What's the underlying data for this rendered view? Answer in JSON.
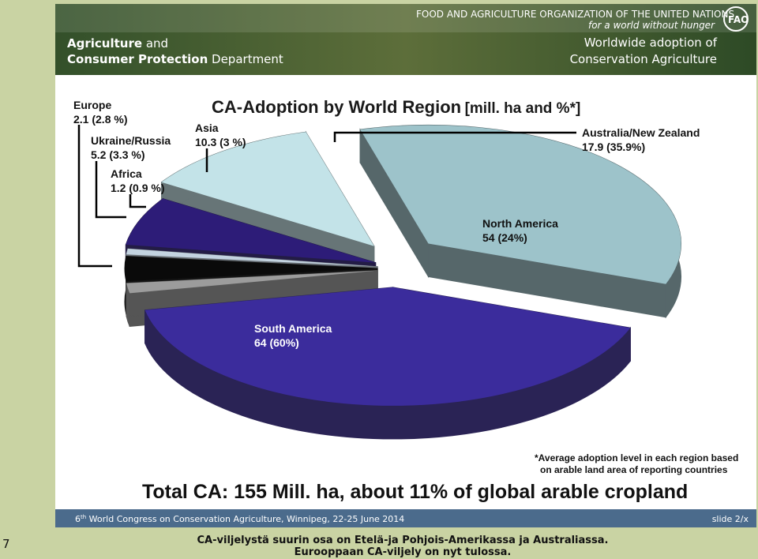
{
  "header": {
    "organization": "FOOD AND AGRICULTURE ORGANIZATION OF THE UNITED NATIONS",
    "tagline": "for a world without hunger",
    "department": [
      "Agriculture",
      "and",
      "Consumer Protection",
      "Department"
    ],
    "slide_title": [
      "Worldwide adoption of",
      "Conservation Agriculture"
    ]
  },
  "chart_data": {
    "type": "pie",
    "title": "CA-Adoption by World Region",
    "title_note": "[mill. ha and %*]",
    "categories": [
      "South America",
      "Europe",
      "Ukraine/Russia",
      "Africa",
      "Asia",
      "Australia/New Zealand",
      "North America"
    ],
    "values": [
      64,
      2.1,
      5.2,
      1.2,
      10.3,
      17.9,
      54
    ],
    "value_labels": [
      "64 (60%)",
      "2.1 (2.8 %)",
      "5.2 (3.3 %)",
      "1.2 (0.9 %)",
      "10.3 (3 %)",
      "17.9 (35.9%)",
      "54 (24%)"
    ],
    "colors": [
      "#3b2c9c",
      "#9c9c9c",
      "#0a0a0a",
      "#c3d3e0",
      "#2d1c78",
      "#c3e3e8",
      "#9dc3ca"
    ],
    "footnote": [
      "*Average adoption level in each region based",
      "on arable land area of reporting countries"
    ],
    "total": "Total CA: 155 Mill. ha, about 11% of global arable cropland"
  },
  "footer": {
    "event": [
      "6",
      "th",
      " World Congress on Conservation Agriculture, Winnipeg, 22-25 June 2014"
    ],
    "slide": "slide 2/x"
  },
  "page_number": "7",
  "caption": [
    "CA-viljelystä suurin osa on Etelä-ja Pohjois-Amerikassa ja Australiassa.",
    "Eurooppaan CA-viljely on nyt tulossa."
  ]
}
